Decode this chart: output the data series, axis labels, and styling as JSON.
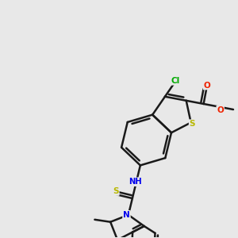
{
  "background_color": "#e8e8e8",
  "bond_color": "#1a1a1a",
  "bond_width": 1.8,
  "S_color": "#b8b800",
  "N_color": "#0000ee",
  "Cl_color": "#00aa00",
  "O_color": "#ee2200",
  "fig_width": 3.0,
  "fig_height": 3.0,
  "dpi": 100,
  "xlim": [
    0,
    10
  ],
  "ylim": [
    0,
    10
  ]
}
